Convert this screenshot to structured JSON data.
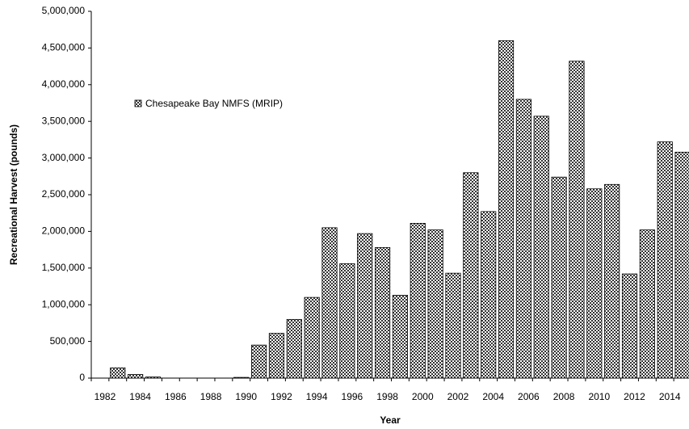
{
  "chart_data": {
    "type": "bar",
    "x_label": "Year",
    "y_label": "Recreational Harvest (pounds)",
    "categories": [
      "1982",
      null,
      "1984",
      null,
      "1986",
      null,
      "1988",
      null,
      "1990",
      null,
      "1992",
      null,
      "1994",
      null,
      "1996",
      null,
      "1998",
      null,
      "2000",
      null,
      "2002",
      null,
      "2004",
      null,
      "2006",
      null,
      "2008",
      null,
      "2010",
      null,
      "2012",
      null,
      "2014",
      null
    ],
    "series": [
      {
        "name": "Chesapeake Bay NMFS (MRIP)",
        "color": "#333333",
        "values": [
          0,
          140000,
          50000,
          15000,
          0,
          0,
          0,
          0,
          10000,
          450000,
          610000,
          800000,
          1100000,
          2050000,
          1560000,
          1970000,
          1780000,
          1130000,
          2110000,
          2020000,
          1430000,
          2800000,
          2270000,
          4600000,
          3800000,
          3570000,
          2740000,
          4320000,
          2580000,
          2640000,
          1420000,
          2020000,
          3220000,
          3080000
        ]
      }
    ],
    "ylim": [
      0,
      5000000
    ],
    "yticks": [
      {
        "value": 0,
        "label": "0"
      },
      {
        "value": 500000,
        "label": "500,000"
      },
      {
        "value": 1000000,
        "label": "1,000,000"
      },
      {
        "value": 1500000,
        "label": "1,500,000"
      },
      {
        "value": 2000000,
        "label": "2,000,000"
      },
      {
        "value": 2500000,
        "label": "2,500,000"
      },
      {
        "value": 3000000,
        "label": "3,000,000"
      },
      {
        "value": 3500000,
        "label": "3,500,000"
      },
      {
        "value": 4000000,
        "label": "4,000,000"
      },
      {
        "value": 4500000,
        "label": "4,500,000"
      },
      {
        "value": 5000000,
        "label": "5,000,000"
      }
    ],
    "grid": false,
    "legend": "upper left"
  }
}
